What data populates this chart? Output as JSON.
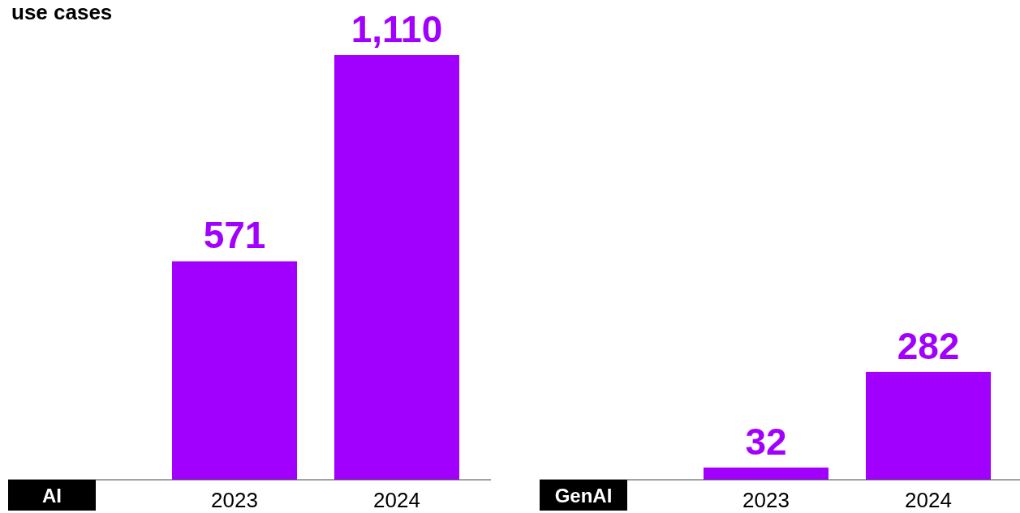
{
  "chart_data": [
    {
      "type": "bar",
      "title": "AI",
      "subtitle": "use cases",
      "categories": [
        "2023",
        "2024"
      ],
      "values": [
        571,
        1110
      ],
      "value_labels": [
        "571",
        "1,110"
      ],
      "color": "#a100ff"
    },
    {
      "type": "bar",
      "title": "GenAI",
      "categories": [
        "2023",
        "2024"
      ],
      "values": [
        32,
        282
      ],
      "value_labels": [
        "32",
        "282"
      ],
      "color": "#a100ff"
    }
  ]
}
